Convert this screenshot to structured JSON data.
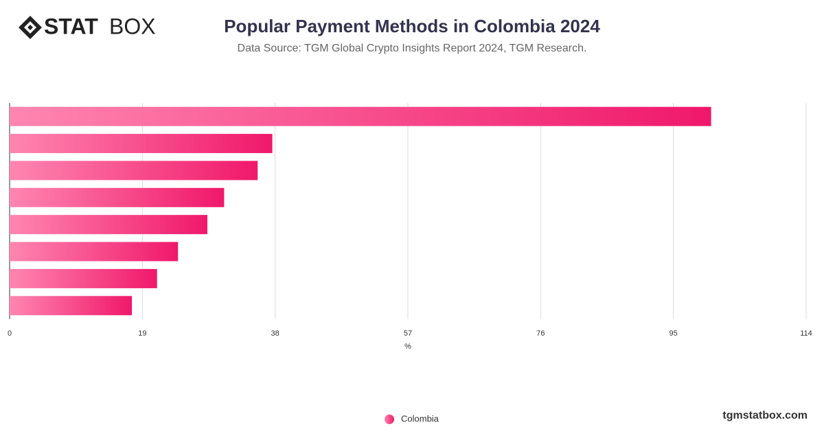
{
  "logo": {
    "bold": "STAT",
    "light": "BOX"
  },
  "footer": "tgmstatbox.com",
  "chart_data": {
    "type": "bar",
    "orientation": "horizontal",
    "title": "Popular Payment Methods in Colombia 2024",
    "subtitle": "Data Source: TGM Global Crypto Insights Report 2024, TGM Research.",
    "x_label": "%",
    "categories": [
      null,
      null,
      null,
      null,
      null,
      null,
      null,
      null
    ],
    "series": [
      {
        "name": "Colombia",
        "color": "#f0186b",
        "values": [
          100.4,
          37.6,
          35.5,
          30.7,
          28.3,
          24.1,
          21.1,
          17.5
        ]
      }
    ],
    "xlim": [
      0,
      114
    ],
    "xticks": [
      0,
      19,
      38,
      57,
      76,
      95,
      114
    ],
    "grid": true,
    "legend": "bottom"
  }
}
